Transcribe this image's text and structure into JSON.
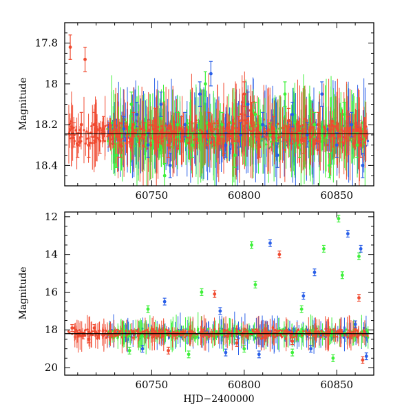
{
  "chart_data": [
    {
      "type": "scatter",
      "title": "",
      "xlabel": "",
      "ylabel": "Magnitude",
      "xlim": [
        60703,
        60870
      ],
      "ylim": [
        18.5,
        17.7
      ],
      "y_inverted": true,
      "reference_line_y": 18.245,
      "x_ticks": [
        60750,
        60800,
        60850
      ],
      "x_tick_labels": [
        "60750",
        "60800",
        "60850"
      ],
      "y_ticks": [
        17.8,
        18.0,
        18.2,
        18.4
      ],
      "y_tick_labels": [
        "17.8",
        "18",
        "18.2",
        "18.4"
      ],
      "series": [
        {
          "color": "#2a5fe8",
          "points": [
            [
              60735,
              18.22
            ],
            [
              60742,
              18.15
            ],
            [
              60748,
              18.3
            ],
            [
              60755,
              18.1
            ],
            [
              60760,
              18.4
            ],
            [
              60768,
              18.2
            ],
            [
              60776,
              18.05
            ],
            [
              60782,
              17.95
            ],
            [
              60790,
              18.3
            ],
            [
              60798,
              18.25
            ],
            [
              60802,
              18.1
            ],
            [
              60810,
              18.2
            ],
            [
              60818,
              18.35
            ],
            [
              60826,
              18.15
            ],
            [
              60834,
              18.25
            ],
            [
              60842,
              18.05
            ],
            [
              60850,
              18.3
            ],
            [
              60858,
              18.2
            ],
            [
              60864,
              18.4
            ]
          ]
        },
        {
          "color": "#3ef03a",
          "points": [
            [
              60731,
              18.35
            ],
            [
              60739,
              18.1
            ],
            [
              60747,
              18.25
            ],
            [
              60757,
              18.45
            ],
            [
              60764,
              18.2
            ],
            [
              60772,
              18.3
            ],
            [
              60779,
              18.0
            ],
            [
              60788,
              18.2
            ],
            [
              60795,
              18.35
            ],
            [
              60806,
              18.15
            ],
            [
              60814,
              18.25
            ],
            [
              60822,
              18.05
            ],
            [
              60830,
              18.3
            ],
            [
              60838,
              18.2
            ],
            [
              60846,
              18.4
            ],
            [
              60854,
              18.15
            ],
            [
              60861,
              18.3
            ]
          ]
        },
        {
          "color": "#f04a30",
          "points": [
            [
              60706,
              17.82
            ],
            [
              60708,
              18.25
            ],
            [
              60710,
              18.3
            ],
            [
              60712,
              18.2
            ],
            [
              60714,
              17.88
            ],
            [
              60716,
              18.3
            ],
            [
              60719,
              18.2
            ],
            [
              60722,
              18.28
            ],
            [
              60724,
              18.22
            ],
            [
              60727,
              18.25
            ],
            [
              60733,
              18.3
            ],
            [
              60740,
              18.2
            ],
            [
              60746,
              18.25
            ],
            [
              60752,
              18.18
            ],
            [
              60759,
              18.3
            ],
            [
              60766,
              18.22
            ],
            [
              60774,
              18.25
            ],
            [
              60781,
              18.2
            ],
            [
              60789,
              18.28
            ],
            [
              60797,
              18.22
            ],
            [
              60800,
              18.05
            ],
            [
              60804,
              18.15
            ],
            [
              60808,
              18.3
            ],
            [
              60816,
              18.22
            ],
            [
              60824,
              18.18
            ],
            [
              60832,
              18.28
            ],
            [
              60840,
              18.2
            ],
            [
              60848,
              18.25
            ],
            [
              60856,
              18.22
            ],
            [
              60863,
              18.3
            ]
          ]
        }
      ]
    },
    {
      "type": "scatter",
      "title": "",
      "xlabel": "HJD−2400000",
      "ylabel": "Magnitude",
      "xlim": [
        60703,
        60870
      ],
      "ylim": [
        20.4,
        11.75
      ],
      "y_inverted": true,
      "reference_line_y": 18.2,
      "x_ticks": [
        60750,
        60800,
        60850
      ],
      "x_tick_labels": [
        "60750",
        "60800",
        "60850"
      ],
      "y_ticks": [
        12,
        14,
        16,
        18,
        20
      ],
      "y_tick_labels": [
        "12",
        "14",
        "16",
        "18",
        "20"
      ],
      "series": [
        {
          "color": "#2a5fe8",
          "points": [
            [
              60757,
              16.5
            ],
            [
              60787,
              17.0
            ],
            [
              60814,
              13.4
            ],
            [
              60832,
              16.2
            ],
            [
              60838,
              14.95
            ],
            [
              60856,
              12.9
            ],
            [
              60863,
              13.7
            ],
            [
              60860,
              17.7
            ],
            [
              60745,
              19.0
            ],
            [
              60790,
              19.2
            ],
            [
              60808,
              19.3
            ],
            [
              60836,
              19.0
            ],
            [
              60866,
              19.4
            ]
          ]
        },
        {
          "color": "#3ef03a",
          "points": [
            [
              60748,
              16.9
            ],
            [
              60777,
              16.0
            ],
            [
              60804,
              13.5
            ],
            [
              60806,
              15.6
            ],
            [
              60831,
              16.9
            ],
            [
              60843,
              13.7
            ],
            [
              60851,
              12.1
            ],
            [
              60853,
              15.1
            ],
            [
              60862,
              14.1
            ],
            [
              60738,
              19.1
            ],
            [
              60770,
              19.3
            ],
            [
              60800,
              19.0
            ],
            [
              60826,
              19.2
            ],
            [
              60848,
              19.5
            ]
          ]
        },
        {
          "color": "#f04a30",
          "points": [
            [
              60707,
              17.9
            ],
            [
              60710,
              18.2
            ],
            [
              60713,
              18.3
            ],
            [
              60716,
              18.5
            ],
            [
              60719,
              17.9
            ],
            [
              60784,
              16.1
            ],
            [
              60819,
              14.0
            ],
            [
              60862,
              16.3
            ],
            [
              60864,
              19.6
            ],
            [
              60759,
              19.1
            ],
            [
              60796,
              18.7
            ],
            [
              60826,
              18.6
            ],
            [
              60858,
              18.3
            ]
          ]
        }
      ]
    }
  ]
}
